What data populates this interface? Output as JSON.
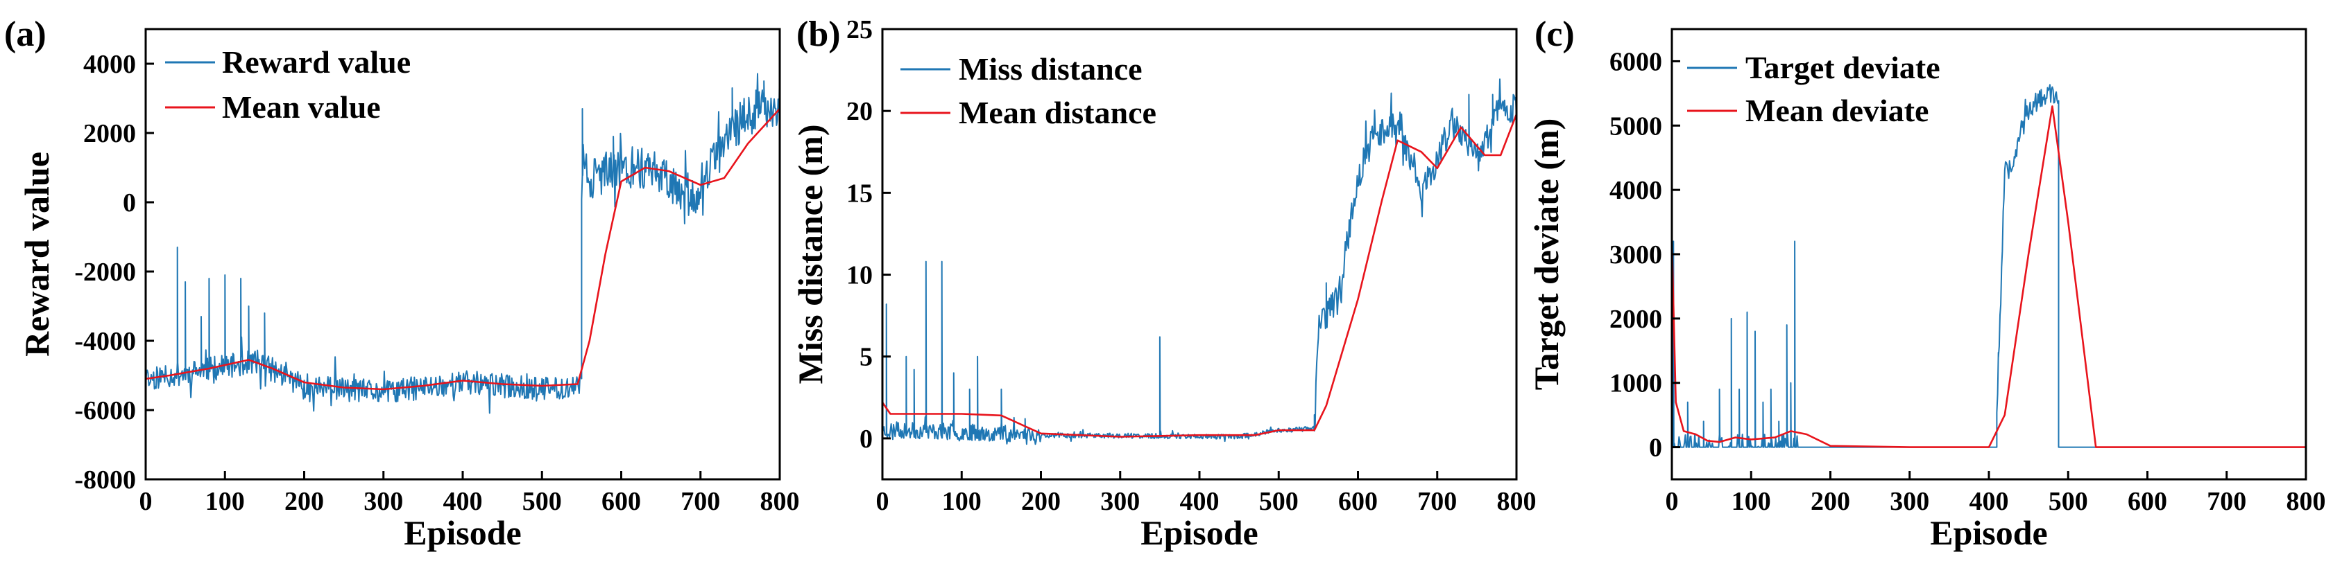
{
  "colors": {
    "raw": "#1F77B4",
    "mean": "#E8141C"
  },
  "chart_data": [
    {
      "type": "line",
      "panel": "(a)",
      "xlabel": "Episode",
      "ylabel": "Reward value",
      "xlim": [
        0,
        800
      ],
      "ylim": [
        -8000,
        5000
      ],
      "xticks": [
        0,
        100,
        200,
        300,
        400,
        500,
        600,
        700,
        800
      ],
      "yticks": [
        -8000,
        -6000,
        -4000,
        -2000,
        0,
        2000,
        4000
      ],
      "legend": [
        "Reward value",
        "Mean value"
      ],
      "legend_position": "top-left",
      "series": [
        {
          "name": "Reward value",
          "style": "noisy",
          "seed": 11,
          "segments": [
            {
              "x": [
                0,
                550
              ],
              "base": [
                [
                  0,
                  -5100
                ],
                [
                  60,
                  -4900
                ],
                [
                  140,
                  -4600
                ],
                [
                  200,
                  -5300
                ],
                [
                  300,
                  -5500
                ],
                [
                  400,
                  -5200
                ],
                [
                  500,
                  -5400
                ],
                [
                  549,
                  -5300
                ]
              ],
              "noise": 350,
              "spikes": [
                [
                  40,
                  -1300
                ],
                [
                  50,
                  -2300
                ],
                [
                  80,
                  -2200
                ],
                [
                  100,
                  -2100
                ],
                [
                  120,
                  -2200
                ],
                [
                  150,
                  -3200
                ],
                [
                  130,
                  -3000
                ],
                [
                  70,
                  -3300
                ]
              ]
            },
            {
              "x": [
                550,
                800
              ],
              "base": [
                [
                  550,
                  1200
                ],
                [
                  560,
                  700
                ],
                [
                  600,
                  1000
                ],
                [
                  640,
                  1000
                ],
                [
                  680,
                  300
                ],
                [
                  700,
                  200
                ],
                [
                  720,
                  1400
                ],
                [
                  760,
                  2600
                ],
                [
                  800,
                  2900
                ]
              ],
              "noise": 600,
              "spikes": [
                [
                  551,
                  2700
                ],
                [
                  590,
                  1900
                ],
                [
                  740,
                  3300
                ],
                [
                  780,
                  3500
                ]
              ]
            }
          ]
        },
        {
          "name": "Mean value",
          "style": "smooth",
          "points": [
            [
              0,
              -5100
            ],
            [
              30,
              -5000
            ],
            [
              80,
              -4800
            ],
            [
              130,
              -4550
            ],
            [
              160,
              -4800
            ],
            [
              200,
              -5200
            ],
            [
              250,
              -5350
            ],
            [
              300,
              -5400
            ],
            [
              350,
              -5300
            ],
            [
              400,
              -5150
            ],
            [
              450,
              -5250
            ],
            [
              500,
              -5300
            ],
            [
              545,
              -5250
            ],
            [
              560,
              -4000
            ],
            [
              580,
              -1500
            ],
            [
              600,
              600
            ],
            [
              630,
              1000
            ],
            [
              660,
              900
            ],
            [
              700,
              500
            ],
            [
              730,
              700
            ],
            [
              760,
              1700
            ],
            [
              800,
              2700
            ]
          ]
        }
      ]
    },
    {
      "type": "line",
      "panel": "(b)",
      "xlabel": "Episode",
      "ylabel": "Miss distance (m)",
      "xlim": [
        0,
        800
      ],
      "ylim": [
        -2.5,
        25
      ],
      "xticks": [
        0,
        100,
        200,
        300,
        400,
        500,
        600,
        700,
        800
      ],
      "yticks": [
        0,
        5,
        10,
        15,
        20,
        25
      ],
      "legend": [
        "Miss distance",
        "Mean distance"
      ],
      "legend_position": "top-left",
      "series": [
        {
          "name": "Miss distance",
          "style": "noisy",
          "seed": 23,
          "segments": [
            {
              "x": [
                0,
                200
              ],
              "base": [
                [
                  0,
                  0.5
                ],
                [
                  100,
                  0.4
                ],
                [
                  200,
                  0.2
                ]
              ],
              "noise": 0.5,
              "spikes": [
                [
                  5,
                  8.2
                ],
                [
                  30,
                  5
                ],
                [
                  55,
                  10.8
                ],
                [
                  75,
                  10.8
                ],
                [
                  90,
                  4
                ],
                [
                  120,
                  5
                ],
                [
                  150,
                  3
                ],
                [
                  180,
                  1.2
                ],
                [
                  40,
                  4.2
                ],
                [
                  110,
                  3
                ]
              ]
            },
            {
              "x": [
                200,
                545
              ],
              "base": [
                [
                  200,
                  0.2
                ],
                [
                  450,
                  0.1
                ],
                [
                  500,
                  0.5
                ],
                [
                  545,
                  0.6
                ]
              ],
              "noise": 0.15,
              "spikes": [
                [
                  350,
                  6.2
                ]
              ]
            },
            {
              "x": [
                545,
                800
              ],
              "base": [
                [
                  545,
                  1
                ],
                [
                  550,
                  7
                ],
                [
                  575,
                  8.5
                ],
                [
                  600,
                  16
                ],
                [
                  620,
                  18.5
                ],
                [
                  650,
                  19.5
                ],
                [
                  680,
                  15
                ],
                [
                  700,
                  17
                ],
                [
                  720,
                  19.5
                ],
                [
                  750,
                  17
                ],
                [
                  780,
                  20.5
                ],
                [
                  800,
                  20
                ]
              ],
              "noise": 0.9,
              "spikes": [
                [
                  560,
                  9.5
                ],
                [
                  740,
                  21
                ],
                [
                  770,
                  21
                ]
              ]
            }
          ]
        },
        {
          "name": "Mean distance",
          "style": "smooth",
          "points": [
            [
              0,
              2.2
            ],
            [
              10,
              1.5
            ],
            [
              50,
              1.5
            ],
            [
              100,
              1.5
            ],
            [
              150,
              1.4
            ],
            [
              200,
              0.3
            ],
            [
              300,
              0.1
            ],
            [
              400,
              0.2
            ],
            [
              470,
              0.2
            ],
            [
              500,
              0.5
            ],
            [
              545,
              0.5
            ],
            [
              560,
              2
            ],
            [
              600,
              8.5
            ],
            [
              630,
              14.5
            ],
            [
              650,
              18.2
            ],
            [
              680,
              17.5
            ],
            [
              700,
              16.5
            ],
            [
              730,
              19
            ],
            [
              760,
              17.3
            ],
            [
              780,
              17.3
            ],
            [
              800,
              19.8
            ]
          ]
        }
      ]
    },
    {
      "type": "line",
      "panel": "(c)",
      "xlabel": "Episode",
      "ylabel": "Target deviate (m)",
      "xlim": [
        0,
        800
      ],
      "ylim": [
        -500,
        6500
      ],
      "xticks": [
        0,
        100,
        200,
        300,
        400,
        500,
        600,
        700,
        800
      ],
      "yticks": [
        0,
        1000,
        2000,
        3000,
        4000,
        5000,
        6000
      ],
      "legend": [
        "Target deviate",
        "Mean deviate"
      ],
      "legend_position": "top-left",
      "series": [
        {
          "name": "Target deviate",
          "style": "spiky",
          "seed": 37,
          "segments": [
            {
              "x": [
                0,
                160
              ],
              "base": [
                [
                  0,
                  0
                ],
                [
                  160,
                  0
                ]
              ],
              "noise": 0,
              "spikes": [
                [
                  2,
                  3200
                ],
                [
                  20,
                  700
                ],
                [
                  40,
                  400
                ],
                [
                  60,
                  900
                ],
                [
                  75,
                  2000
                ],
                [
                  85,
                  900
                ],
                [
                  95,
                  2100
                ],
                [
                  105,
                  1800
                ],
                [
                  115,
                  700
                ],
                [
                  125,
                  900
                ],
                [
                  135,
                  400
                ],
                [
                  145,
                  1900
                ],
                [
                  155,
                  3200
                ],
                [
                  150,
                  1000
                ]
              ]
            },
            {
              "x": [
                160,
                410
              ],
              "base": [
                [
                  160,
                  0
                ],
                [
                  410,
                  0
                ]
              ],
              "noise": 0,
              "spikes": []
            },
            {
              "x": [
                410,
                488
              ],
              "base": [
                [
                  410,
                  600
                ],
                [
                  420,
                  4300
                ],
                [
                  430,
                  4400
                ],
                [
                  440,
                  5000
                ],
                [
                  460,
                  5400
                ],
                [
                  480,
                  5500
                ],
                [
                  488,
                  5300
                ]
              ],
              "noise": 150,
              "spikes": [
                [
                  412,
                  1400
                ]
              ]
            },
            {
              "x": [
                488,
                800
              ],
              "base": [
                [
                  488,
                  0
                ],
                [
                  800,
                  0
                ]
              ],
              "noise": 0,
              "spikes": []
            }
          ]
        },
        {
          "name": "Mean deviate",
          "style": "smooth",
          "points": [
            [
              0,
              3200
            ],
            [
              5,
              700
            ],
            [
              15,
              250
            ],
            [
              30,
              200
            ],
            [
              45,
              100
            ],
            [
              60,
              80
            ],
            [
              80,
              150
            ],
            [
              100,
              120
            ],
            [
              130,
              150
            ],
            [
              150,
              250
            ],
            [
              170,
              200
            ],
            [
              200,
              20
            ],
            [
              300,
              0
            ],
            [
              400,
              0
            ],
            [
              420,
              500
            ],
            [
              450,
              3000
            ],
            [
              480,
              5300
            ],
            [
              500,
              3500
            ],
            [
              520,
              1500
            ],
            [
              535,
              0
            ],
            [
              600,
              0
            ],
            [
              700,
              0
            ],
            [
              800,
              0
            ]
          ]
        }
      ]
    }
  ]
}
